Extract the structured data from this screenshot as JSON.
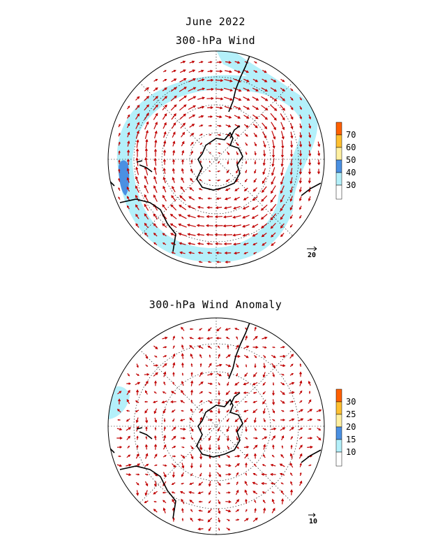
{
  "header": {
    "title": "June 2022",
    "top_panel_title": "300-hPa Wind",
    "bottom_panel_title": "300-hPa Wind Anomaly"
  },
  "colors": {
    "vector": "#c00000",
    "coast": "#000000",
    "scale_bins": [
      "#ffffff",
      "#b4f0fa",
      "#4a90e2",
      "#fff0a0",
      "#ffc030",
      "#ff6000"
    ]
  },
  "panels": [
    {
      "id": "top",
      "map": "polar-stereographic-south",
      "colorbar": {
        "labels": [
          "30",
          "40",
          "50",
          "60",
          "70"
        ]
      },
      "reference_vector": {
        "label": "20"
      }
    },
    {
      "id": "bottom",
      "map": "polar-stereographic-south",
      "colorbar": {
        "labels": [
          "10",
          "15",
          "20",
          "25",
          "30"
        ]
      },
      "reference_vector": {
        "label": "10"
      }
    }
  ]
}
